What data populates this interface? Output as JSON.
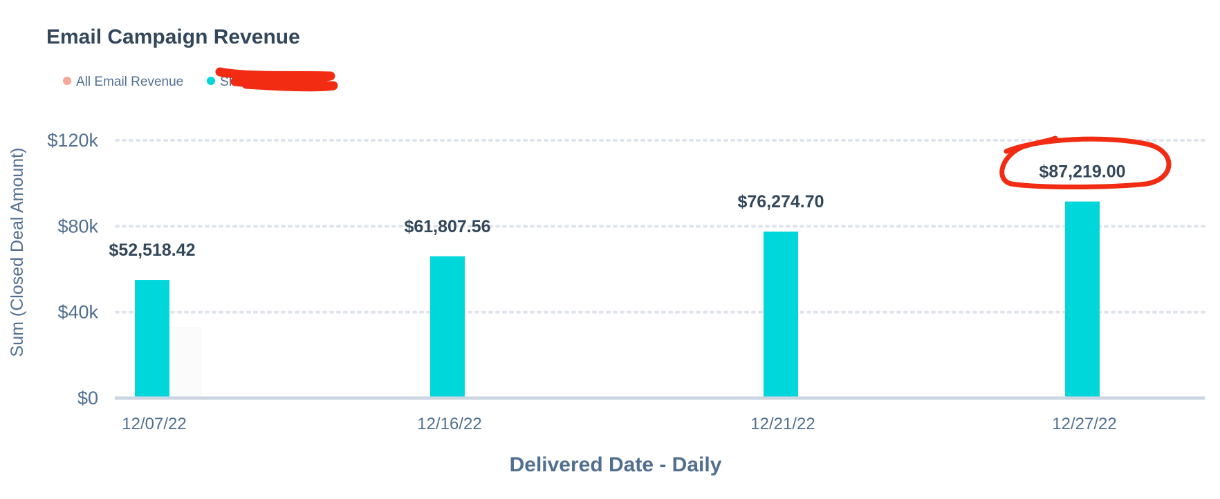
{
  "chart_data": {
    "type": "bar",
    "title": "Email Campaign Revenue",
    "legend": {
      "placement": "top-left",
      "entries": [
        {
          "name": "All Email Revenue",
          "color": "#ff8f59"
        },
        {
          "name": "SKU",
          "color": "#00bda5"
        }
      ]
    },
    "categories": [
      "12/07/22",
      "12/16/22",
      "12/21/22",
      "12/27/22"
    ],
    "series": [
      {
        "name": "SKU",
        "values": [
          55000,
          66000,
          77500,
          91500
        ],
        "color": "#00d7db"
      }
    ],
    "data_labels": [
      "$52,518.42",
      "$61,807.56",
      "$76,274.70",
      "$87,219.00"
    ],
    "xlabel": "Delivered Date - Daily",
    "ylabel": "Sum (Closed Deal Amount)",
    "ylim": [
      0,
      120000
    ],
    "yticks": [
      {
        "value": 0,
        "label": "$0"
      },
      {
        "value": 40000,
        "label": "$40k"
      },
      {
        "value": 80000,
        "label": "$80k"
      },
      {
        "value": 120000,
        "label": "$120k"
      }
    ],
    "grid": true,
    "annotations": {
      "circled_label": "$87,219.00",
      "redaction_color": "#f22b13",
      "circle_color": "#f22b13"
    }
  }
}
